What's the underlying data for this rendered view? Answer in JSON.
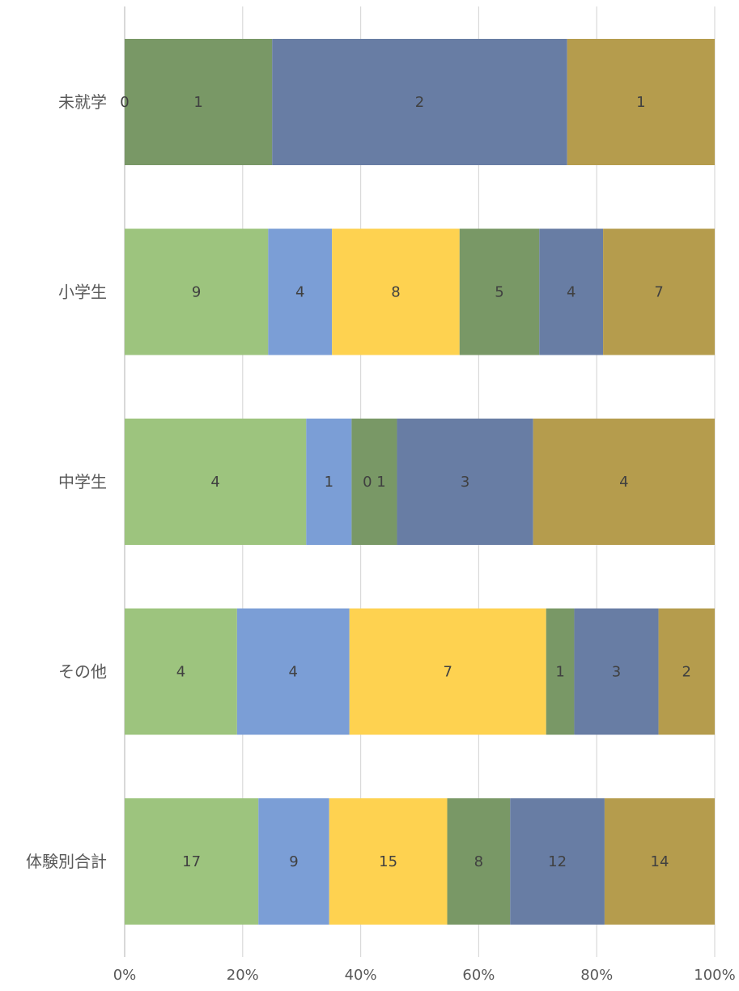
{
  "chart_data": {
    "type": "bar",
    "orientation": "horizontal",
    "stacked": "percent",
    "categories": [
      "未就学",
      "小学生",
      "中学生",
      "その他",
      "体験別合計"
    ],
    "series": [
      {
        "color": "#9DC47E",
        "values": [
          0,
          9,
          4,
          4,
          17
        ],
        "labels": [
          "0",
          "9",
          "4",
          "4",
          "17"
        ]
      },
      {
        "color": "#7B9ED6",
        "values": [
          0,
          4,
          1,
          4,
          9
        ],
        "labels": [
          "",
          "4",
          "1",
          "4",
          "9"
        ]
      },
      {
        "color": "#FED250",
        "values": [
          0,
          8,
          0,
          7,
          15
        ],
        "labels": [
          "",
          "8",
          "",
          "7",
          "15"
        ]
      },
      {
        "color": "#799866",
        "values": [
          1,
          5,
          1,
          1,
          8
        ],
        "labels": [
          "1",
          "5",
          "0 1",
          "1",
          "8"
        ]
      },
      {
        "color": "#687DA4",
        "values": [
          2,
          4,
          3,
          3,
          12
        ],
        "labels": [
          "2",
          "4",
          "3",
          "3",
          "12"
        ]
      },
      {
        "color": "#B59C4D",
        "values": [
          1,
          7,
          4,
          2,
          14
        ],
        "labels": [
          "1",
          "7",
          "4",
          "2",
          "14"
        ]
      }
    ],
    "xticks": [
      "0%",
      "20%",
      "40%",
      "60%",
      "80%",
      "100%"
    ],
    "xlim": [
      0,
      100
    ],
    "grid": true,
    "legend": "none"
  }
}
